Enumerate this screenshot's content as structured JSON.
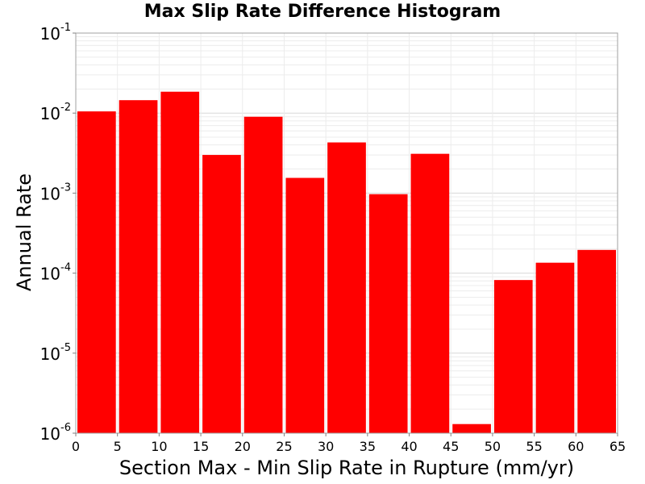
{
  "chart_data": {
    "type": "bar",
    "title": "Max Slip Rate Difference Histogram",
    "xlabel": "Section Max - Min Slip Rate in Rupture (mm/yr)",
    "ylabel": "Annual Rate",
    "x_bins": [
      [
        0,
        5
      ],
      [
        5,
        10
      ],
      [
        10,
        15
      ],
      [
        15,
        20
      ],
      [
        20,
        25
      ],
      [
        25,
        30
      ],
      [
        30,
        35
      ],
      [
        35,
        40
      ],
      [
        40,
        45
      ],
      [
        45,
        50
      ],
      [
        50,
        55
      ],
      [
        55,
        60
      ],
      [
        60,
        65
      ]
    ],
    "values": [
      0.0105,
      0.0145,
      0.0185,
      0.003,
      0.009,
      0.00155,
      0.0043,
      0.00097,
      0.0031,
      1.3e-06,
      8.2e-05,
      0.000135,
      0.000195
    ],
    "xlim": [
      0,
      65
    ],
    "ylim": [
      1e-06,
      0.1
    ],
    "yscale": "log",
    "x_ticks": [
      "0",
      "5",
      "10",
      "15",
      "20",
      "25",
      "30",
      "35",
      "40",
      "45",
      "50",
      "55",
      "60",
      "65"
    ],
    "y_ticks": [
      {
        "base": "10",
        "exp": "-6"
      },
      {
        "base": "10",
        "exp": "-5"
      },
      {
        "base": "10",
        "exp": "-4"
      },
      {
        "base": "10",
        "exp": "-3"
      },
      {
        "base": "10",
        "exp": "-2"
      },
      {
        "base": "10",
        "exp": "-1"
      }
    ],
    "bar_color": "#ff0000",
    "grid": true,
    "legend": "none"
  }
}
